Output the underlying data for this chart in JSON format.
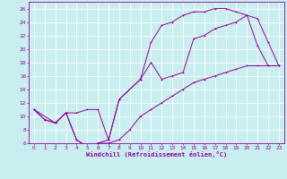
{
  "xlabel": "Windchill (Refroidissement éolien,°C)",
  "bg_color": "#c8eef0",
  "line_color": "#990099",
  "grid_color": "#ffffff",
  "xlim": [
    -0.5,
    23.5
  ],
  "ylim": [
    6,
    27
  ],
  "yticks": [
    6,
    8,
    10,
    12,
    14,
    16,
    18,
    20,
    22,
    24,
    26
  ],
  "xticks": [
    0,
    1,
    2,
    3,
    4,
    5,
    6,
    7,
    8,
    9,
    10,
    11,
    12,
    13,
    14,
    15,
    16,
    17,
    18,
    19,
    20,
    21,
    22,
    23
  ],
  "curve1_x": [
    0,
    1,
    2,
    3,
    4,
    5,
    6,
    7,
    8,
    10,
    11,
    12,
    13,
    14,
    15,
    16,
    17,
    18,
    19,
    20,
    21,
    22,
    23
  ],
  "curve1_y": [
    11,
    9.5,
    9,
    10.5,
    6.5,
    5.5,
    6,
    6.5,
    12.5,
    15.5,
    21,
    23.5,
    24,
    25,
    25.5,
    25.5,
    26,
    26,
    25.5,
    25,
    20.5,
    17.5,
    17.5
  ],
  "curve2_x": [
    0,
    2,
    3,
    4,
    5,
    6,
    7,
    8,
    10,
    11,
    12,
    13,
    14,
    15,
    16,
    17,
    18,
    19,
    20,
    21,
    22,
    23
  ],
  "curve2_y": [
    11,
    9,
    10.5,
    10.5,
    11,
    11,
    6.5,
    12.5,
    15.5,
    18,
    15.5,
    16,
    16.5,
    21.5,
    22,
    23,
    23.5,
    24,
    25,
    24.5,
    21,
    17.5
  ],
  "curve3_x": [
    0,
    1,
    2,
    3,
    4,
    5,
    6,
    7,
    8,
    9,
    10,
    11,
    12,
    13,
    14,
    15,
    16,
    17,
    18,
    19,
    20,
    21,
    22,
    23
  ],
  "curve3_y": [
    11,
    9.5,
    9,
    10.5,
    6.5,
    5.5,
    6,
    6,
    6.5,
    8,
    10,
    11,
    12,
    13,
    14,
    15,
    15.5,
    16,
    16.5,
    17,
    17.5,
    17.5,
    17.5,
    17.5
  ],
  "tick_fontsize": 4.2,
  "xlabel_fontsize": 5.0,
  "lw": 0.7,
  "ms": 2.0
}
